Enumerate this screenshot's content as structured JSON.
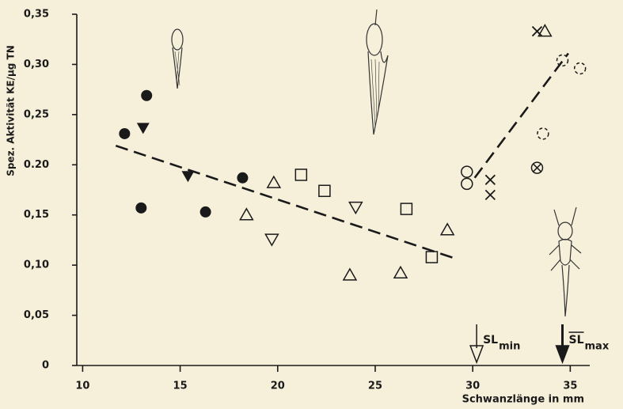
{
  "chart_data": {
    "type": "scatter",
    "y_label": "Spez. Aktivität KE/µg TN",
    "x_label": "Schwanzlänge in mm",
    "xlim": [
      9.7,
      36
    ],
    "ylim": [
      0,
      0.35
    ],
    "xticks": [
      10,
      15,
      20,
      25,
      30,
      35
    ],
    "yticks": [
      0,
      {
        "value": 0.05,
        "label": "0,05"
      },
      {
        "value": 0.1,
        "label": "0,10"
      },
      {
        "value": 0.15,
        "label": "0,15"
      },
      {
        "value": 0.2,
        "label": "0.20"
      },
      {
        "value": 0.25,
        "label": "0,25"
      },
      {
        "value": 0.3,
        "label": "0,30"
      },
      {
        "value": 0.35,
        "label": "0,35"
      }
    ],
    "color": "#1a1a1a",
    "series": [
      {
        "marker": "circle-filled",
        "x": [
          12.15,
          13.28,
          13.0,
          16.3,
          18.2
        ],
        "values": [
          0.231,
          0.269,
          0.157,
          0.153,
          0.187
        ]
      },
      {
        "marker": "triangle-down-filled",
        "x": [
          13.1,
          15.4
        ],
        "values": [
          0.237,
          0.189
        ]
      },
      {
        "marker": "triangle-up",
        "x": [
          18.4,
          19.8,
          23.7,
          26.3,
          28.7,
          33.7
        ],
        "values": [
          0.15,
          0.182,
          0.09,
          0.092,
          0.135,
          0.333
        ]
      },
      {
        "marker": "triangle-down",
        "x": [
          19.7,
          24.0
        ],
        "values": [
          0.126,
          0.158
        ]
      },
      {
        "marker": "square",
        "x": [
          21.2,
          22.4,
          26.6,
          27.9
        ],
        "values": [
          0.19,
          0.174,
          0.156,
          0.108
        ]
      },
      {
        "marker": "circle",
        "x": [
          29.7,
          29.7
        ],
        "values": [
          0.193,
          0.181
        ]
      },
      {
        "marker": "cross",
        "x": [
          30.9,
          30.9,
          33.3
        ],
        "values": [
          0.185,
          0.17,
          0.333
        ]
      },
      {
        "marker": "circle-dashed",
        "x": [
          34.6,
          35.5,
          33.6
        ],
        "values": [
          0.304,
          0.296,
          0.231
        ]
      },
      {
        "marker": "circle-cross",
        "x": [
          33.3
        ],
        "values": [
          0.197
        ]
      }
    ],
    "fits": [
      {
        "x": [
          11.7,
          29.2
        ],
        "values": [
          0.219,
          0.106
        ]
      },
      {
        "x": [
          30.1,
          34.9
        ],
        "values": [
          0.187,
          0.311
        ]
      }
    ],
    "markers": [
      {
        "x": 30.2,
        "label": "SL",
        "sub": "min",
        "arrow": "open",
        "overline": false
      },
      {
        "x": 34.6,
        "label": "SL",
        "sub": "max",
        "arrow": "filled",
        "overline": true
      }
    ]
  }
}
